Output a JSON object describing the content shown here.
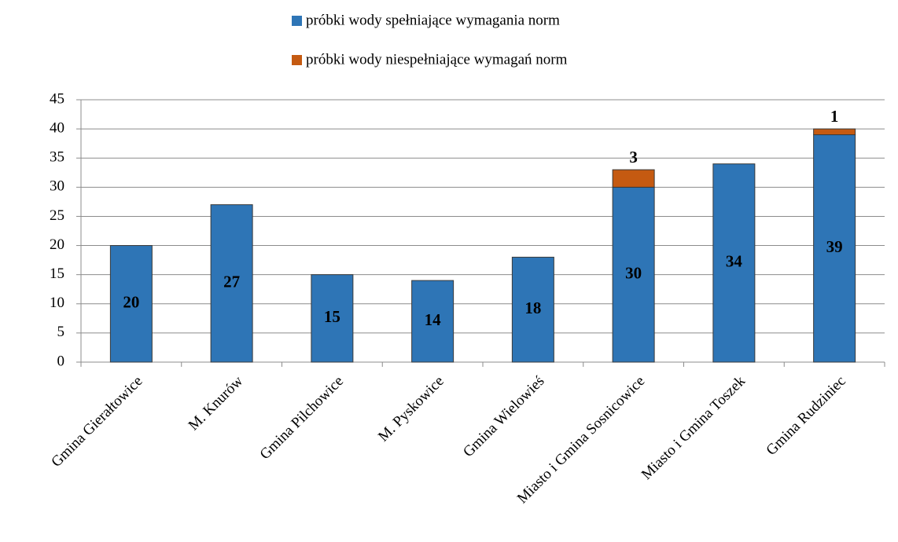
{
  "chart_data": {
    "type": "stacked_bar",
    "categories": [
      "Gmina Gierałtowice",
      "M. Knurów",
      "Gmina Pilchowice",
      "M. Pyskowice",
      "Gmina Wielowieś",
      "Miasto i Gmina Sosnicowice",
      "Miasto i Gmina Toszek",
      "Gmina Rudziniec"
    ],
    "series": [
      {
        "name": "próbki wody spełniające wymagania norm",
        "color": "#2e75b6",
        "values": [
          20,
          27,
          15,
          14,
          18,
          30,
          34,
          39
        ]
      },
      {
        "name": "próbki wody niespełniające wymagań norm",
        "color": "#c55a11",
        "values": [
          null,
          null,
          null,
          null,
          null,
          3,
          null,
          1
        ]
      }
    ],
    "ylim": [
      0,
      45
    ],
    "yticks": [
      0,
      5,
      10,
      15,
      20,
      25,
      30,
      35,
      40,
      45
    ],
    "grid": true,
    "legend": "top"
  }
}
